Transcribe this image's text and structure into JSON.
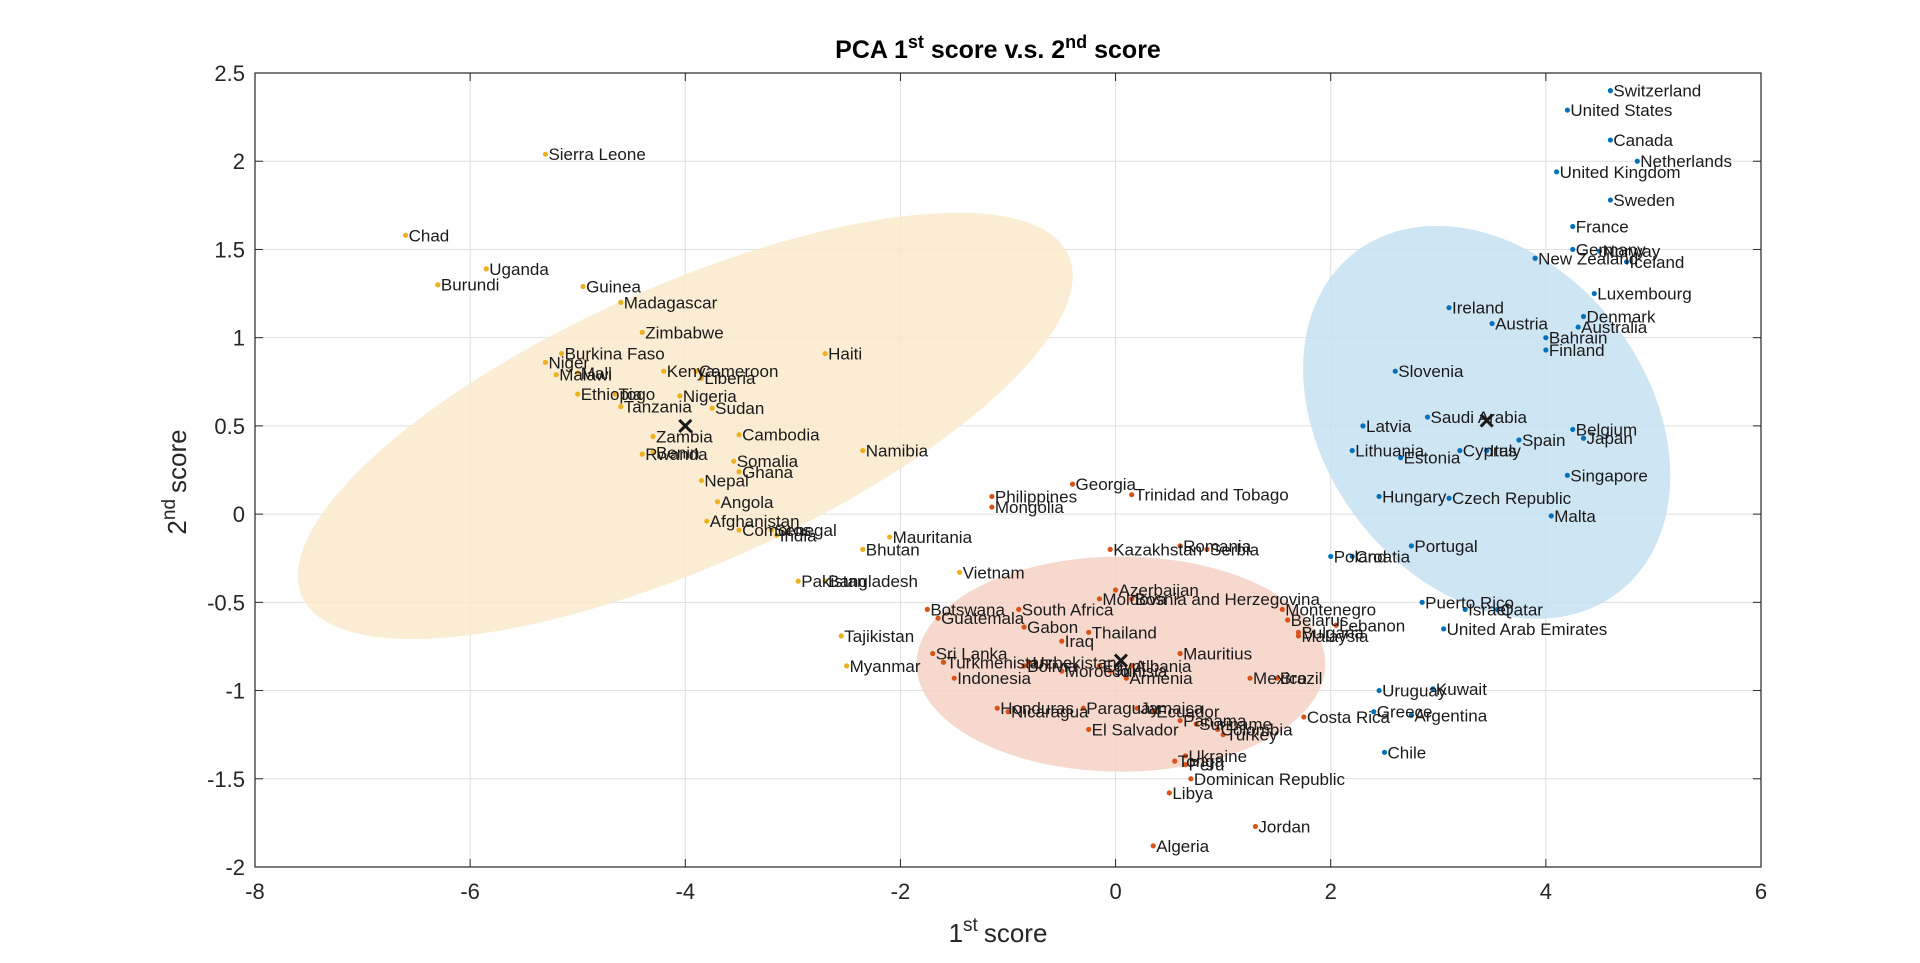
{
  "chart_data": {
    "type": "scatter",
    "title": "PCA 1st score v.s. 2nd score",
    "title_main_a": "PCA 1",
    "title_sup_a": "st",
    "title_main_b": " score v.s. 2",
    "title_sup_b": "nd",
    "title_main_c": " score",
    "xlabel": "1st score",
    "xlabel_sup": "st",
    "xlabel_main": "score",
    "xlabel_num": "1",
    "ylabel": "2nd score",
    "ylabel_num": "2",
    "ylabel_sup": "nd",
    "ylabel_main": "score",
    "xlim": [
      -8,
      6
    ],
    "ylim": [
      -2,
      2.5
    ],
    "xticks": [
      -8,
      -6,
      -4,
      -2,
      0,
      2,
      4,
      6
    ],
    "yticks": [
      -2,
      -1.5,
      -1,
      -0.5,
      0,
      0.5,
      1,
      1.5,
      2,
      2.5
    ],
    "grid": true,
    "colors": {
      "cluster1": "#0072BD",
      "cluster2": "#D95319",
      "cluster3": "#EDB120",
      "ellipse1": "#C6E1F2",
      "ellipse2": "#F4D2C3",
      "ellipse3": "#FAEACB"
    },
    "ellipses": [
      {
        "cluster": 3,
        "center": [
          -4.0,
          0.5
        ],
        "semi_axes": [
          3.9,
          1.3
        ],
        "angle_deg": -24
      },
      {
        "cluster": 2,
        "center": [
          0.05,
          -0.85
        ],
        "semi_axes": [
          1.9,
          1.0
        ],
        "angle_deg": 0
      },
      {
        "cluster": 1,
        "center": [
          3.45,
          0.52
        ],
        "semi_axes": [
          2.0,
          1.5
        ],
        "angle_deg": 52
      }
    ],
    "centroids": [
      {
        "cluster": 3,
        "x": -4.0,
        "y": 0.5
      },
      {
        "cluster": 2,
        "x": 0.05,
        "y": -0.83
      },
      {
        "cluster": 1,
        "x": 3.45,
        "y": 0.53
      }
    ],
    "series": [
      {
        "cluster": 1,
        "points": [
          {
            "name": "Switzerland",
            "x": 4.6,
            "y": 2.4
          },
          {
            "name": "United States",
            "x": 4.2,
            "y": 2.29
          },
          {
            "name": "Canada",
            "x": 4.6,
            "y": 2.12
          },
          {
            "name": "Netherlands",
            "x": 4.85,
            "y": 2.0
          },
          {
            "name": "United Kingdom",
            "x": 4.1,
            "y": 1.94
          },
          {
            "name": "Sweden",
            "x": 4.6,
            "y": 1.78
          },
          {
            "name": "France",
            "x": 4.25,
            "y": 1.63
          },
          {
            "name": "Germany",
            "x": 4.25,
            "y": 1.5
          },
          {
            "name": "Norway",
            "x": 4.5,
            "y": 1.49
          },
          {
            "name": "New Zealand",
            "x": 3.9,
            "y": 1.45
          },
          {
            "name": "Iceland",
            "x": 4.75,
            "y": 1.43
          },
          {
            "name": "Luxembourg",
            "x": 4.45,
            "y": 1.25
          },
          {
            "name": "Ireland",
            "x": 3.1,
            "y": 1.17
          },
          {
            "name": "Denmark",
            "x": 4.35,
            "y": 1.12
          },
          {
            "name": "Austria",
            "x": 3.5,
            "y": 1.08
          },
          {
            "name": "Australia",
            "x": 4.3,
            "y": 1.06
          },
          {
            "name": "Bahrain",
            "x": 4.0,
            "y": 1.0
          },
          {
            "name": "Finland",
            "x": 4.0,
            "y": 0.93
          },
          {
            "name": "Slovenia",
            "x": 2.6,
            "y": 0.81
          },
          {
            "name": "Saudi Arabia",
            "x": 2.9,
            "y": 0.55
          },
          {
            "name": "Latvia",
            "x": 2.3,
            "y": 0.5
          },
          {
            "name": "Belgium",
            "x": 4.25,
            "y": 0.48
          },
          {
            "name": "Spain",
            "x": 3.75,
            "y": 0.42
          },
          {
            "name": "Japan",
            "x": 4.35,
            "y": 0.43
          },
          {
            "name": "Lithuania",
            "x": 2.2,
            "y": 0.36
          },
          {
            "name": "Cyprus",
            "x": 3.2,
            "y": 0.36
          },
          {
            "name": "Italy",
            "x": 3.45,
            "y": 0.36
          },
          {
            "name": "Estonia",
            "x": 2.65,
            "y": 0.32
          },
          {
            "name": "Singapore",
            "x": 4.2,
            "y": 0.22
          },
          {
            "name": "Hungary",
            "x": 2.45,
            "y": 0.1
          },
          {
            "name": "Czech Republic",
            "x": 3.1,
            "y": 0.09
          },
          {
            "name": "Malta",
            "x": 4.05,
            "y": -0.01
          },
          {
            "name": "Portugal",
            "x": 2.75,
            "y": -0.18
          },
          {
            "name": "Poland",
            "x": 2.0,
            "y": -0.24
          },
          {
            "name": "Croatia",
            "x": 2.2,
            "y": -0.24
          },
          {
            "name": "Puerto Rico",
            "x": 2.85,
            "y": -0.5
          },
          {
            "name": "Israel",
            "x": 3.25,
            "y": -0.54
          },
          {
            "name": "Qatar",
            "x": 3.55,
            "y": -0.54
          },
          {
            "name": "United Arab Emirates",
            "x": 3.05,
            "y": -0.65
          },
          {
            "name": "Uruguay",
            "x": 2.45,
            "y": -1.0
          },
          {
            "name": "Kuwait",
            "x": 2.95,
            "y": -0.99
          },
          {
            "name": "Greece",
            "x": 2.4,
            "y": -1.12
          },
          {
            "name": "Argentina",
            "x": 2.75,
            "y": -1.14
          },
          {
            "name": "Chile",
            "x": 2.5,
            "y": -1.35
          }
        ]
      },
      {
        "cluster": 2,
        "points": [
          {
            "name": "Georgia",
            "x": -0.4,
            "y": 0.17
          },
          {
            "name": "Philippines",
            "x": -1.15,
            "y": 0.1
          },
          {
            "name": "Trinidad and Tobago",
            "x": 0.15,
            "y": 0.11
          },
          {
            "name": "Mongolia",
            "x": -1.15,
            "y": 0.04
          },
          {
            "name": "Kazakhstan",
            "x": -0.05,
            "y": -0.2
          },
          {
            "name": "Romania",
            "x": 0.6,
            "y": -0.18
          },
          {
            "name": "Serbia",
            "x": 0.85,
            "y": -0.2
          },
          {
            "name": "Azerbaijan",
            "x": 0.0,
            "y": -0.43
          },
          {
            "name": "Moldova",
            "x": -0.15,
            "y": -0.48
          },
          {
            "name": "Bosnia and Herzegovina",
            "x": 0.15,
            "y": -0.48
          },
          {
            "name": "Montenegro",
            "x": 1.55,
            "y": -0.54
          },
          {
            "name": "Belarus",
            "x": 1.6,
            "y": -0.6
          },
          {
            "name": "Lebanon",
            "x": 2.05,
            "y": -0.63
          },
          {
            "name": "Bulgaria",
            "x": 1.7,
            "y": -0.67
          },
          {
            "name": "Malaysia",
            "x": 1.7,
            "y": -0.69
          },
          {
            "name": "Botswana",
            "x": -1.75,
            "y": -0.54
          },
          {
            "name": "South Africa",
            "x": -0.9,
            "y": -0.54
          },
          {
            "name": "Guatemala",
            "x": -1.65,
            "y": -0.59
          },
          {
            "name": "Gabon",
            "x": -0.85,
            "y": -0.64
          },
          {
            "name": "Thailand",
            "x": -0.25,
            "y": -0.67
          },
          {
            "name": "Iraq",
            "x": -0.5,
            "y": -0.72
          },
          {
            "name": "Mauritius",
            "x": 0.6,
            "y": -0.79
          },
          {
            "name": "Sri Lanka",
            "x": -1.7,
            "y": -0.79
          },
          {
            "name": "Turkmenistan",
            "x": -1.6,
            "y": -0.84
          },
          {
            "name": "Uzbekistan",
            "x": -0.8,
            "y": -0.84
          },
          {
            "name": "Bolivia",
            "x": -0.85,
            "y": -0.86
          },
          {
            "name": "Egypt",
            "x": -0.15,
            "y": -0.86
          },
          {
            "name": "Albania",
            "x": 0.15,
            "y": -0.86
          },
          {
            "name": "Morocco",
            "x": -0.5,
            "y": -0.89
          },
          {
            "name": "Tunisia",
            "x": -0.05,
            "y": -0.89
          },
          {
            "name": "Indonesia",
            "x": -1.5,
            "y": -0.93
          },
          {
            "name": "Armenia",
            "x": 0.1,
            "y": -0.93
          },
          {
            "name": "Mexico",
            "x": 1.25,
            "y": -0.93
          },
          {
            "name": "Brazil",
            "x": 1.5,
            "y": -0.93
          },
          {
            "name": "Honduras",
            "x": -1.1,
            "y": -1.1
          },
          {
            "name": "Nicaragua",
            "x": -1.0,
            "y": -1.12
          },
          {
            "name": "Paraguay",
            "x": -0.3,
            "y": -1.1
          },
          {
            "name": "Jamaica",
            "x": 0.2,
            "y": -1.1
          },
          {
            "name": "Ecuador",
            "x": 0.35,
            "y": -1.12
          },
          {
            "name": "Costa Rica",
            "x": 1.75,
            "y": -1.15
          },
          {
            "name": "Panama",
            "x": 0.6,
            "y": -1.17
          },
          {
            "name": "Suriname",
            "x": 0.75,
            "y": -1.19
          },
          {
            "name": "El Salvador",
            "x": -0.25,
            "y": -1.22
          },
          {
            "name": "Colombia",
            "x": 0.95,
            "y": -1.22
          },
          {
            "name": "Turkey",
            "x": 1.0,
            "y": -1.25
          },
          {
            "name": "Ukraine",
            "x": 0.65,
            "y": -1.37
          },
          {
            "name": "Tonga",
            "x": 0.55,
            "y": -1.4
          },
          {
            "name": "Peru",
            "x": 0.65,
            "y": -1.42
          },
          {
            "name": "Dominican Republic",
            "x": 0.7,
            "y": -1.5
          },
          {
            "name": "Libya",
            "x": 0.5,
            "y": -1.58
          },
          {
            "name": "Jordan",
            "x": 1.3,
            "y": -1.77
          },
          {
            "name": "Algeria",
            "x": 0.35,
            "y": -1.88
          }
        ]
      },
      {
        "cluster": 3,
        "points": [
          {
            "name": "Sierra Leone",
            "x": -5.3,
            "y": 2.04
          },
          {
            "name": "Chad",
            "x": -6.6,
            "y": 1.58
          },
          {
            "name": "Uganda",
            "x": -5.85,
            "y": 1.39
          },
          {
            "name": "Burundi",
            "x": -6.3,
            "y": 1.3
          },
          {
            "name": "Guinea",
            "x": -4.95,
            "y": 1.29
          },
          {
            "name": "Madagascar",
            "x": -4.6,
            "y": 1.2
          },
          {
            "name": "Zimbabwe",
            "x": -4.4,
            "y": 1.03
          },
          {
            "name": "Haiti",
            "x": -2.7,
            "y": 0.91
          },
          {
            "name": "Burkina Faso",
            "x": -5.15,
            "y": 0.91
          },
          {
            "name": "Niger",
            "x": -5.3,
            "y": 0.86
          },
          {
            "name": "Kenya",
            "x": -4.2,
            "y": 0.81
          },
          {
            "name": "Cameroon",
            "x": -3.9,
            "y": 0.81
          },
          {
            "name": "Mali",
            "x": -5.0,
            "y": 0.8
          },
          {
            "name": "Malawi",
            "x": -5.2,
            "y": 0.79
          },
          {
            "name": "Liberia",
            "x": -3.85,
            "y": 0.77
          },
          {
            "name": "Ethiopia",
            "x": -5.0,
            "y": 0.68
          },
          {
            "name": "Togo",
            "x": -4.65,
            "y": 0.68
          },
          {
            "name": "Nigeria",
            "x": -4.05,
            "y": 0.67
          },
          {
            "name": "Tanzania",
            "x": -4.6,
            "y": 0.61
          },
          {
            "name": "Sudan",
            "x": -3.75,
            "y": 0.6
          },
          {
            "name": "Cambodia",
            "x": -3.5,
            "y": 0.45
          },
          {
            "name": "Zambia",
            "x": -4.3,
            "y": 0.44
          },
          {
            "name": "Namibia",
            "x": -2.35,
            "y": 0.36
          },
          {
            "name": "Benin",
            "x": -4.3,
            "y": 0.35
          },
          {
            "name": "Rwanda",
            "x": -4.4,
            "y": 0.34
          },
          {
            "name": "Somalia",
            "x": -3.55,
            "y": 0.3
          },
          {
            "name": "Ghana",
            "x": -3.5,
            "y": 0.24
          },
          {
            "name": "Nepal",
            "x": -3.85,
            "y": 0.19
          },
          {
            "name": "Angola",
            "x": -3.7,
            "y": 0.07
          },
          {
            "name": "Afghanistan",
            "x": -3.8,
            "y": -0.04
          },
          {
            "name": "Comoros",
            "x": -3.5,
            "y": -0.09
          },
          {
            "name": "Senegal",
            "x": -3.2,
            "y": -0.09
          },
          {
            "name": "India",
            "x": -3.15,
            "y": -0.12
          },
          {
            "name": "Mauritania",
            "x": -2.1,
            "y": -0.13
          },
          {
            "name": "Bhutan",
            "x": -2.35,
            "y": -0.2
          },
          {
            "name": "Vietnam",
            "x": -1.45,
            "y": -0.33
          },
          {
            "name": "Pakistan",
            "x": -2.95,
            "y": -0.38
          },
          {
            "name": "Bangladesh",
            "x": -2.7,
            "y": -0.38
          },
          {
            "name": "Tajikistan",
            "x": -2.55,
            "y": -0.69
          },
          {
            "name": "Myanmar",
            "x": -2.5,
            "y": -0.86
          }
        ]
      }
    ]
  }
}
